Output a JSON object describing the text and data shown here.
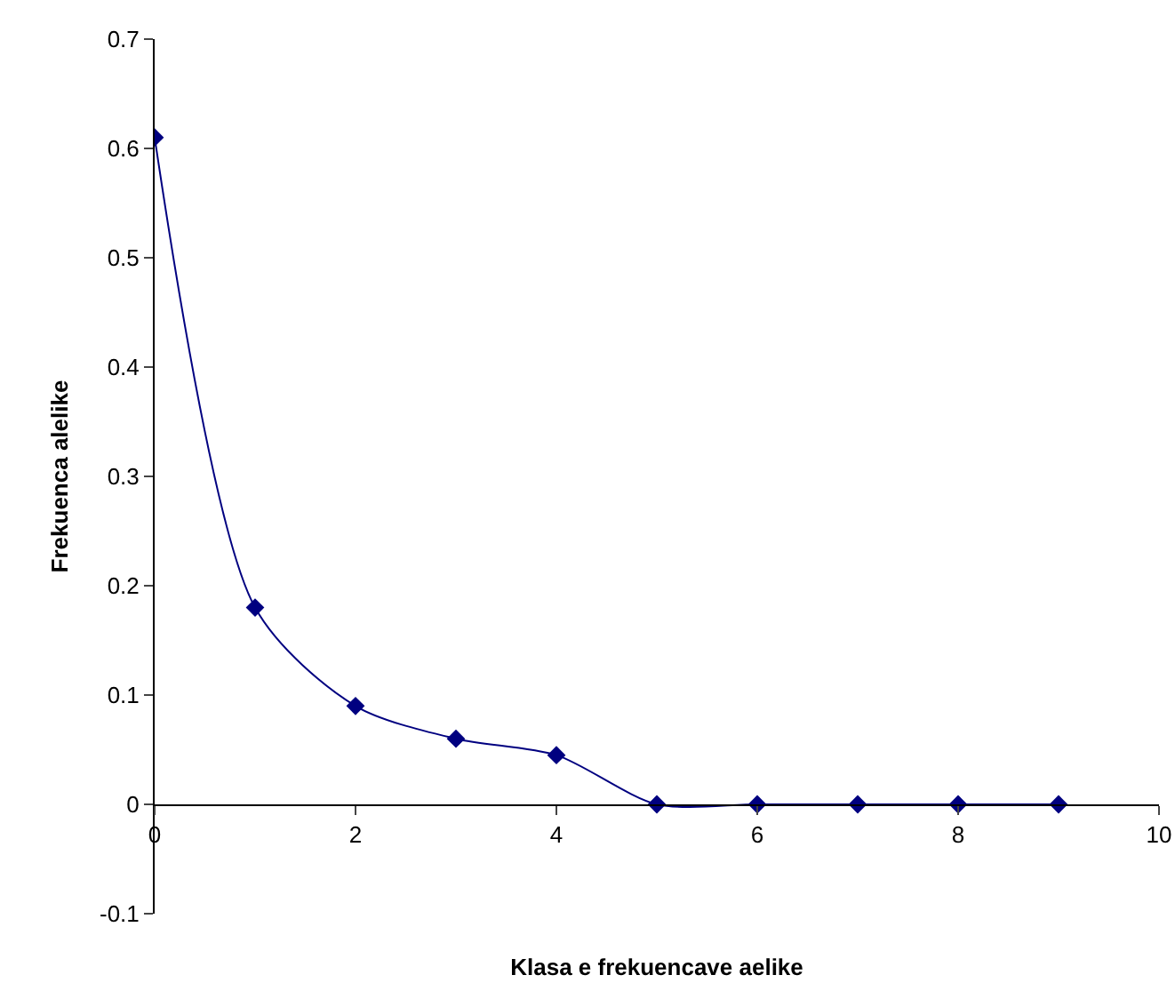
{
  "chart_data": {
    "type": "line",
    "xlabel": "Klasa e frekuencave aelike",
    "ylabel": "Frekuenca alelike",
    "x": [
      0,
      1,
      2,
      3,
      4,
      5,
      6,
      7,
      8,
      9
    ],
    "series": [
      {
        "color": "#000080",
        "values": [
          0.61,
          0.18,
          0.09,
          0.06,
          0.045,
          0,
          0,
          0,
          0,
          0
        ]
      }
    ],
    "xlim": [
      0,
      10
    ],
    "xticks": [
      0,
      2,
      4,
      6,
      8,
      10
    ],
    "ylim": [
      -0.1,
      0.7
    ],
    "yticks": [
      -0.1,
      0,
      0.1,
      0.2,
      0.3,
      0.4,
      0.5,
      0.6,
      0.7
    ],
    "grid": false,
    "legend": false,
    "marker": "diamond",
    "line_style": "solid"
  }
}
